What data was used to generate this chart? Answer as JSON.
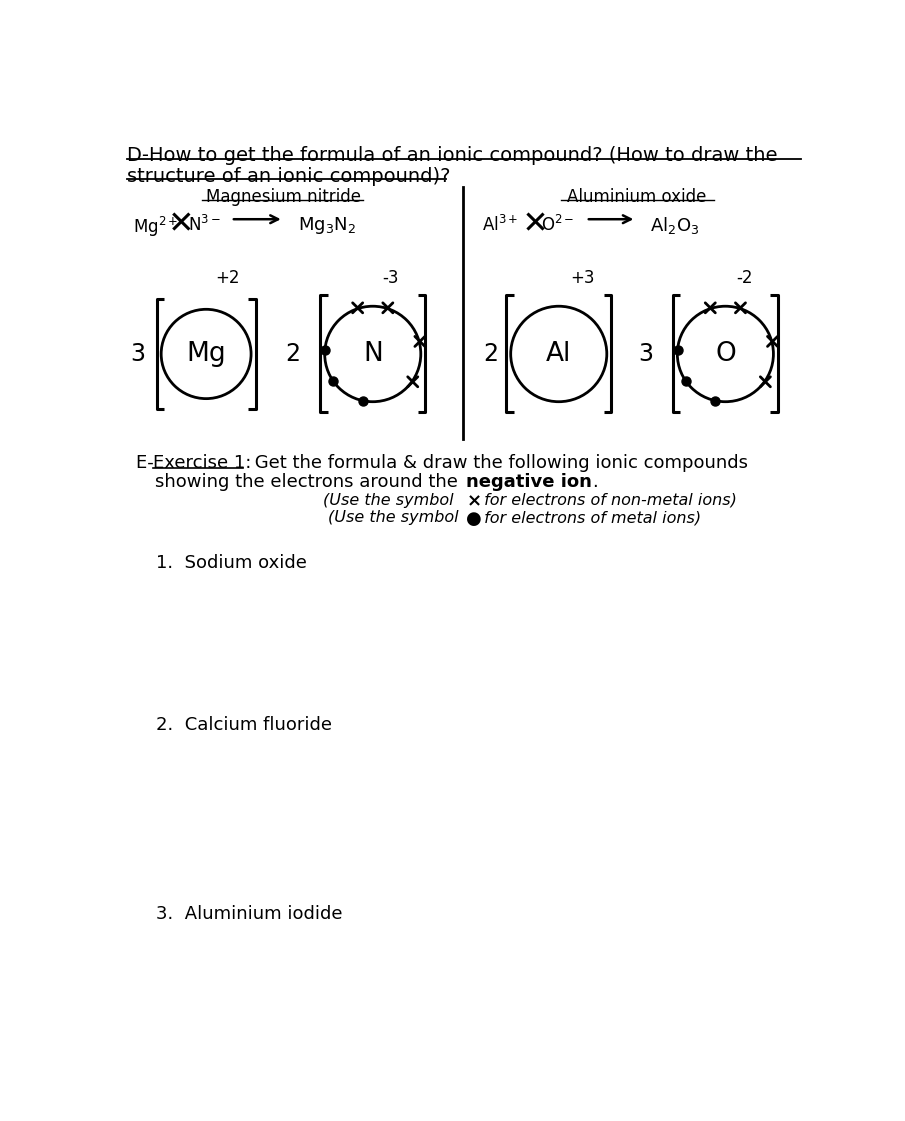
{
  "bg_color": "#ffffff",
  "text_color": "#000000",
  "title_line1": "D-How to get the formula of an ionic compound? (How to draw the",
  "title_line2": "structure of an ionic compound)?",
  "left_title": "Magnesium nitride",
  "left_formula": "Mg₃N₂",
  "left_charge1": "+2",
  "left_charge2": "-3",
  "left_count1": "3",
  "left_count2": "2",
  "left_elem1": "Mg",
  "left_elem2": "N",
  "right_title": "Aluminium oxide",
  "right_formula": "Al₂O₃",
  "right_charge1": "+3",
  "right_charge2": "-2",
  "right_count1": "2",
  "right_count2": "3",
  "right_elem1": "Al",
  "right_elem2": "O",
  "item1": "1.  Sodium oxide",
  "item2": "2.  Calcium fluoride",
  "item3": "3.  Aluminium iodide"
}
